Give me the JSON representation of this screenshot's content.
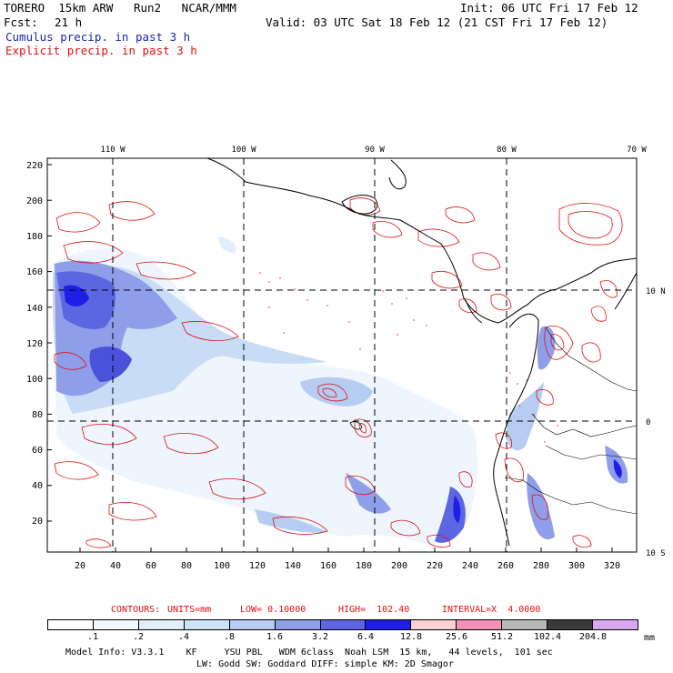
{
  "header": {
    "model": "TORERO  15km ARW   Run2   NCAR/MMM",
    "init": "Init: 06 UTC Fri 17 Feb 12",
    "fcst_label": "Fcst:",
    "fcst_value": "21 h",
    "valid": "Valid: 03 UTC Sat 18 Feb 12 (21 CST Fri 17 Feb 12)",
    "legend_cumulus": "Cumulus precip. in past 3 h",
    "legend_explicit": "Explicit precip. in past 3 h"
  },
  "colors": {
    "cumulus_text": "#1b2aa8",
    "explicit_text": "#e01010",
    "contour_red": "#e01010",
    "coast": "#000000",
    "grid": "#000000"
  },
  "map": {
    "top_lon_labels": [
      "110 W",
      "100 W",
      "90 W",
      "80 W",
      "70 W"
    ],
    "right_lat_labels": [
      "10 N",
      "0",
      "10 S"
    ],
    "y_ticks": [
      "220",
      "200",
      "180",
      "160",
      "140",
      "120",
      "100",
      "80",
      "60",
      "40",
      "20"
    ],
    "x_ticks": [
      "20",
      "40",
      "60",
      "80",
      "100",
      "120",
      "140",
      "160",
      "180",
      "200",
      "220",
      "240",
      "260",
      "280",
      "300",
      "320"
    ]
  },
  "contours": {
    "label": "CONTOURS:",
    "units": "UNITS=mm",
    "low": "LOW= 0.10000",
    "high": "HIGH=  102.40",
    "interval": "INTERVAL=X  4.0000"
  },
  "colorbar": {
    "colors": [
      "#ffffff",
      "#f3f8ff",
      "#e2eefb",
      "#cfe3f7",
      "#b6ccf0",
      "#8e9ee8",
      "#5c66e0",
      "#1f1ee6",
      "#f8d2d2",
      "#f590b8",
      "#b8b8b8",
      "#3a3a3a",
      "#d9a6f2"
    ],
    "labels": [
      ".1",
      ".2",
      ".4",
      ".8",
      "1.6",
      "3.2",
      "6.4",
      "12.8",
      "25.6",
      "51.2",
      "102.4",
      "204.8"
    ],
    "unit": "mm"
  },
  "footer": {
    "line1": "Model Info: V3.3.1    KF     YSU PBL   WDM 6class  Noah LSM  15 km,   44 levels,  101 sec",
    "line2": "LW: Godd SW: Goddard DIFF: simple KM: 2D Smagor"
  }
}
